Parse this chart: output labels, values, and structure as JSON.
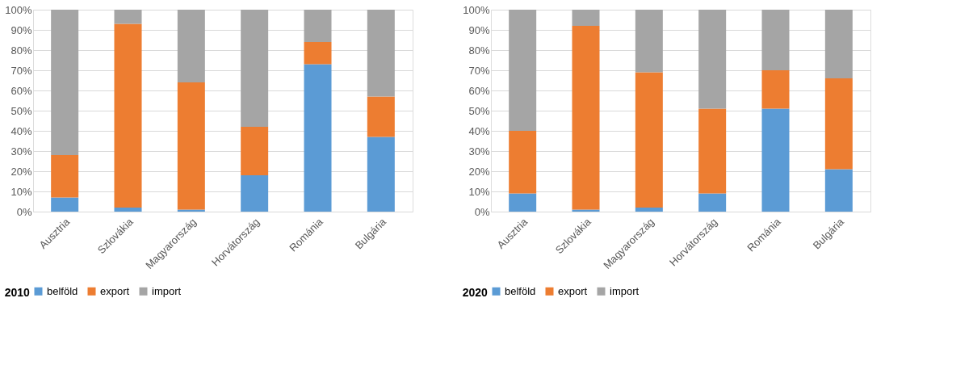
{
  "chart_data": [
    {
      "type": "bar",
      "title": "2010",
      "stacked": true,
      "categories": [
        "Ausztria",
        "Szlovákia",
        "Magyarország",
        "Horvátország",
        "Románia",
        "Bulgária"
      ],
      "series": [
        {
          "name": "belföld",
          "color": "#5b9bd5",
          "values": [
            7,
            2,
            1,
            18,
            73,
            37
          ]
        },
        {
          "name": "export",
          "color": "#ed7d31",
          "values": [
            21,
            91,
            63,
            24,
            11,
            20
          ]
        },
        {
          "name": "import",
          "color": "#a5a5a5",
          "values": [
            72,
            7,
            36,
            58,
            16,
            43
          ]
        }
      ],
      "ylim": [
        0,
        100
      ],
      "yticks": [
        {
          "value": 0,
          "label": "0%"
        },
        {
          "value": 10,
          "label": "10%"
        },
        {
          "value": 20,
          "label": "20%"
        },
        {
          "value": 30,
          "label": "30%"
        },
        {
          "value": 40,
          "label": "40%"
        },
        {
          "value": 50,
          "label": "50%"
        },
        {
          "value": 60,
          "label": "60%"
        },
        {
          "value": 70,
          "label": "70%"
        },
        {
          "value": 80,
          "label": "80%"
        },
        {
          "value": 90,
          "label": "90%"
        },
        {
          "value": 100,
          "label": "100%"
        }
      ],
      "grid": "y",
      "legend": "bottom"
    },
    {
      "type": "bar",
      "title": "2020",
      "stacked": true,
      "categories": [
        "Ausztria",
        "Szlovákia",
        "Magyarország",
        "Horvátország",
        "Románia",
        "Bulgária"
      ],
      "series": [
        {
          "name": "belföld",
          "color": "#5b9bd5",
          "values": [
            9,
            1,
            2,
            9,
            51,
            21
          ]
        },
        {
          "name": "export",
          "color": "#ed7d31",
          "values": [
            31,
            91,
            67,
            42,
            19,
            45
          ]
        },
        {
          "name": "import",
          "color": "#a5a5a5",
          "values": [
            60,
            8,
            31,
            49,
            30,
            34
          ]
        }
      ],
      "ylim": [
        0,
        100
      ],
      "yticks": [
        {
          "value": 0,
          "label": "0%"
        },
        {
          "value": 10,
          "label": "10%"
        },
        {
          "value": 20,
          "label": "20%"
        },
        {
          "value": 30,
          "label": "30%"
        },
        {
          "value": 40,
          "label": "40%"
        },
        {
          "value": 50,
          "label": "50%"
        },
        {
          "value": 60,
          "label": "60%"
        },
        {
          "value": 70,
          "label": "70%"
        },
        {
          "value": 80,
          "label": "80%"
        },
        {
          "value": 90,
          "label": "90%"
        },
        {
          "value": 100,
          "label": "100%"
        }
      ],
      "grid": "y",
      "legend": "bottom"
    }
  ]
}
